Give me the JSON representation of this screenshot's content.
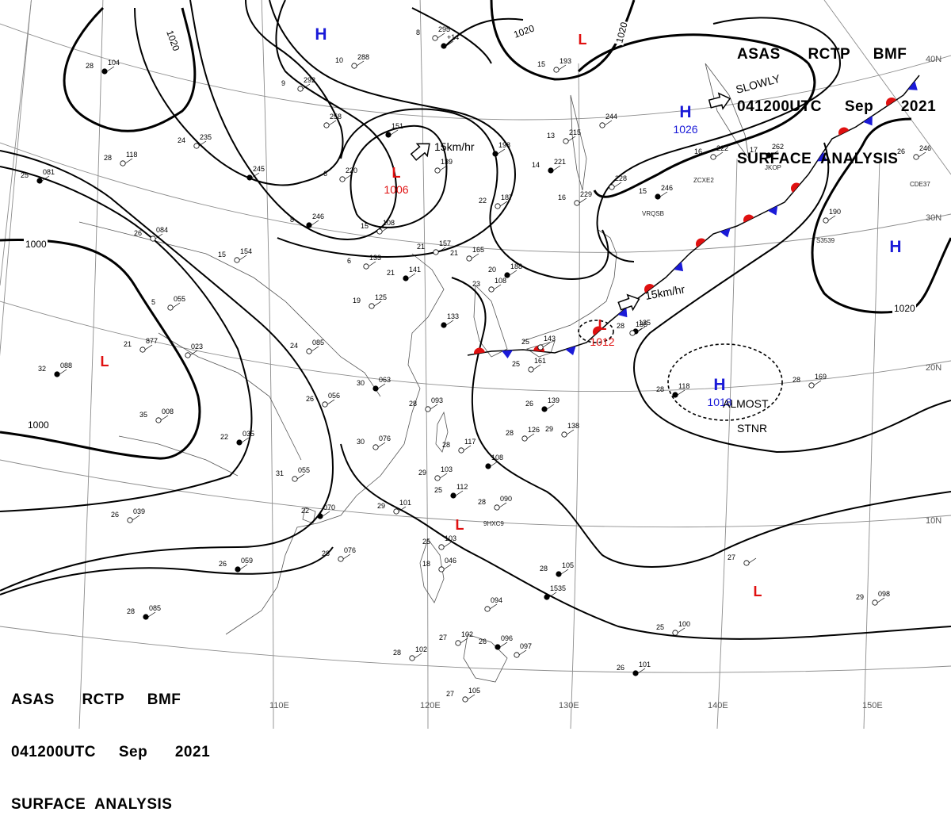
{
  "header": {
    "line1": "ASAS      RCTP     BMF",
    "line2": "041200UTC     Sep      2021",
    "line3": "SURFACE  ANALYSIS"
  },
  "lon_labels": [
    "110E",
    "120E",
    "130E",
    "140E",
    "150E"
  ],
  "lat_labels": [
    "40N",
    "30N",
    "20N",
    "10N"
  ],
  "isobar_labels": [
    "1020",
    "1020",
    "1020",
    "1000",
    "1000",
    "1020"
  ],
  "pressure_centers": [
    {
      "type": "H",
      "value": ""
    },
    {
      "type": "L",
      "value": ""
    },
    {
      "type": "H",
      "value": "1026"
    },
    {
      "type": "L",
      "value": "1006"
    },
    {
      "type": "L",
      "value": ""
    },
    {
      "type": "H",
      "value": ""
    },
    {
      "type": "L",
      "value": "1012"
    },
    {
      "type": "H",
      "value": "1018"
    },
    {
      "type": "L",
      "value": ""
    },
    {
      "type": "L",
      "value": ""
    }
  ],
  "movement_annotations": [
    "SLOWLY",
    "15km/hr",
    "15km/hr",
    "ALMOST",
    "STNR"
  ],
  "colors": {
    "high": "#1a1ad8",
    "low": "#e01010",
    "line": "#000000",
    "grid": "#888888"
  },
  "stations": [
    {
      "id": "s01",
      "label": "28",
      "value": "104"
    },
    {
      "id": "s02",
      "label": "10",
      "value": "288"
    },
    {
      "id": "s03",
      "label": "8",
      "value": "295"
    },
    {
      "id": "s04",
      "label": "",
      "value": "+14"
    },
    {
      "id": "s05",
      "label": "9",
      "value": "292"
    },
    {
      "id": "s06",
      "label": "",
      "value": "258"
    },
    {
      "id": "s07",
      "label": "",
      "value": "151"
    },
    {
      "id": "s08",
      "label": "24",
      "value": "235"
    },
    {
      "id": "s09",
      "label": "28",
      "value": "118"
    },
    {
      "id": "s10",
      "label": "",
      "value": "245"
    },
    {
      "id": "s11",
      "label": "6",
      "value": "220"
    },
    {
      "id": "s12",
      "label": "",
      "value": "139"
    },
    {
      "id": "s13",
      "label": "",
      "value": "198"
    },
    {
      "id": "s14",
      "label": "15",
      "value": "193"
    },
    {
      "id": "s15",
      "label": "13",
      "value": "215"
    },
    {
      "id": "s16",
      "label": "14",
      "value": "221"
    },
    {
      "id": "s17",
      "label": "",
      "value": "244"
    },
    {
      "id": "s18",
      "label": "16",
      "value": "222"
    },
    {
      "id": "s19",
      "label": "17",
      "value": "262"
    },
    {
      "id": "s20",
      "label": "26",
      "value": "246"
    },
    {
      "id": "s21",
      "label": "",
      "value": "228"
    },
    {
      "id": "s22",
      "label": "15",
      "value": "246"
    },
    {
      "id": "s23",
      "label": "16",
      "value": "229"
    },
    {
      "id": "s24",
      "label": "22",
      "value": "187"
    },
    {
      "id": "s25",
      "label": "8",
      "value": "246"
    },
    {
      "id": "s26",
      "label": "15",
      "value": "108"
    },
    {
      "id": "s27",
      "label": "26",
      "value": "084"
    },
    {
      "id": "s28",
      "label": "25",
      "value": "081"
    },
    {
      "id": "s29",
      "label": "15",
      "value": "154"
    },
    {
      "id": "s30",
      "label": "6",
      "value": "133"
    },
    {
      "id": "s31",
      "label": "21",
      "value": "141"
    },
    {
      "id": "s32",
      "label": "21",
      "value": "157"
    },
    {
      "id": "s33",
      "label": "21",
      "value": "165"
    },
    {
      "id": "s34",
      "label": "20",
      "value": "188"
    },
    {
      "id": "s35",
      "label": "23",
      "value": "108"
    },
    {
      "id": "s36",
      "label": "",
      "value": "190"
    },
    {
      "id": "s37",
      "label": "",
      "value": "1535"
    },
    {
      "id": "s38",
      "label": "5",
      "value": "055"
    },
    {
      "id": "s39",
      "label": "19",
      "value": "125"
    },
    {
      "id": "s40",
      "label": "",
      "value": "133"
    },
    {
      "id": "s41",
      "label": "21",
      "value": "877"
    },
    {
      "id": "s42",
      "label": "",
      "value": "023"
    },
    {
      "id": "s43",
      "label": "32",
      "value": "088"
    },
    {
      "id": "s44",
      "label": "24",
      "value": "085"
    },
    {
      "id": "s45",
      "label": "26",
      "value": "056"
    },
    {
      "id": "s46",
      "label": "30",
      "value": "063"
    },
    {
      "id": "s47",
      "label": "28",
      "value": "093"
    },
    {
      "id": "s48",
      "label": "25",
      "value": "143"
    },
    {
      "id": "s49",
      "label": "28",
      "value": "135"
    },
    {
      "id": "s50",
      "label": "",
      "value": "135"
    },
    {
      "id": "s51",
      "label": "25",
      "value": "161"
    },
    {
      "id": "s52",
      "label": "26",
      "value": "139"
    },
    {
      "id": "s53",
      "label": "28",
      "value": "126"
    },
    {
      "id": "s54",
      "label": "29",
      "value": "138"
    },
    {
      "id": "s55",
      "label": "28",
      "value": "118"
    },
    {
      "id": "s56",
      "label": "28",
      "value": "169"
    },
    {
      "id": "s57",
      "label": "35",
      "value": "008"
    },
    {
      "id": "s58",
      "label": "22",
      "value": "035"
    },
    {
      "id": "s59",
      "label": "30",
      "value": "076"
    },
    {
      "id": "s60",
      "label": "28",
      "value": "117"
    },
    {
      "id": "s61",
      "label": "",
      "value": "108"
    },
    {
      "id": "s62",
      "label": "31",
      "value": "055"
    },
    {
      "id": "s63",
      "label": "29",
      "value": "103"
    },
    {
      "id": "s64",
      "label": "25",
      "value": "112"
    },
    {
      "id": "s65",
      "label": "28",
      "value": "090"
    },
    {
      "id": "s66",
      "label": "29",
      "value": "101"
    },
    {
      "id": "s67",
      "label": "22",
      "value": "070"
    },
    {
      "id": "s68",
      "label": "26",
      "value": "039"
    },
    {
      "id": "s69",
      "label": "28",
      "value": "076"
    },
    {
      "id": "s70",
      "label": "26",
      "value": "059"
    },
    {
      "id": "s71",
      "label": "25",
      "value": "103"
    },
    {
      "id": "s72",
      "label": "18",
      "value": "046"
    },
    {
      "id": "s73",
      "label": "28",
      "value": "105"
    },
    {
      "id": "s74",
      "label": "27",
      "value": ""
    },
    {
      "id": "s75",
      "label": "29",
      "value": "098"
    },
    {
      "id": "s76",
      "label": "28",
      "value": "085"
    },
    {
      "id": "s77",
      "label": "",
      "value": "094"
    },
    {
      "id": "s78",
      "label": "27",
      "value": "102"
    },
    {
      "id": "s79",
      "label": "26",
      "value": "096"
    },
    {
      "id": "s80",
      "label": "",
      "value": "097"
    },
    {
      "id": "s81",
      "label": "25",
      "value": "100"
    },
    {
      "id": "s82",
      "label": "26",
      "value": "101"
    },
    {
      "id": "s83",
      "label": "28",
      "value": "102"
    },
    {
      "id": "s84",
      "label": "27",
      "value": "105"
    }
  ],
  "ship_labels": [
    "ZCXE2",
    "VRQSB",
    "JKOP",
    "CDE37",
    "9HXC9",
    "S3539"
  ]
}
